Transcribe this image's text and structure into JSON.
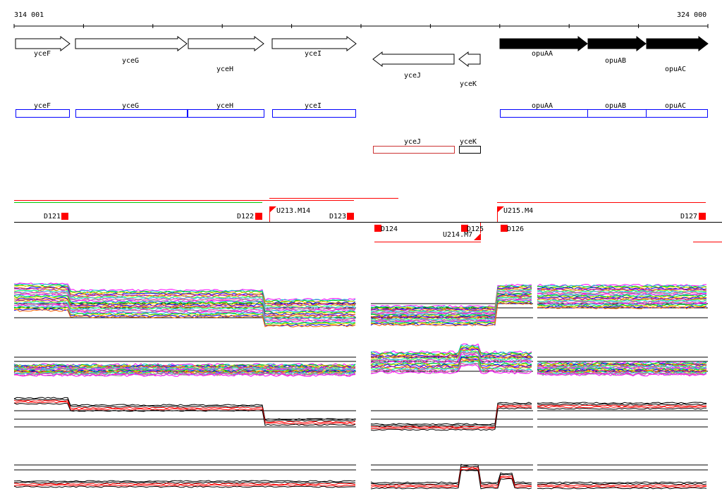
{
  "ruler": {
    "start_label": "314 001",
    "end_label": "324 000"
  },
  "genes": {
    "yceF": "yceF",
    "yceG": "yceG",
    "yceH": "yceH",
    "yceI": "yceI",
    "yceJ": "yceJ",
    "yceK": "yceK",
    "opuAA": "opuAA",
    "opuAB": "opuAB",
    "opuAC": "opuAC"
  },
  "features": {
    "D121": "D121",
    "D122": "D122",
    "D123": "D123",
    "D124": "D124",
    "D125": "D125",
    "D126": "D126",
    "D127": "D127",
    "U213": "U213.M14",
    "U214": "U214.M7",
    "U215": "U215.M4"
  },
  "colors": {
    "forward_box": "#0000ff",
    "feature": "#ff0000",
    "green": "#00cc00"
  }
}
